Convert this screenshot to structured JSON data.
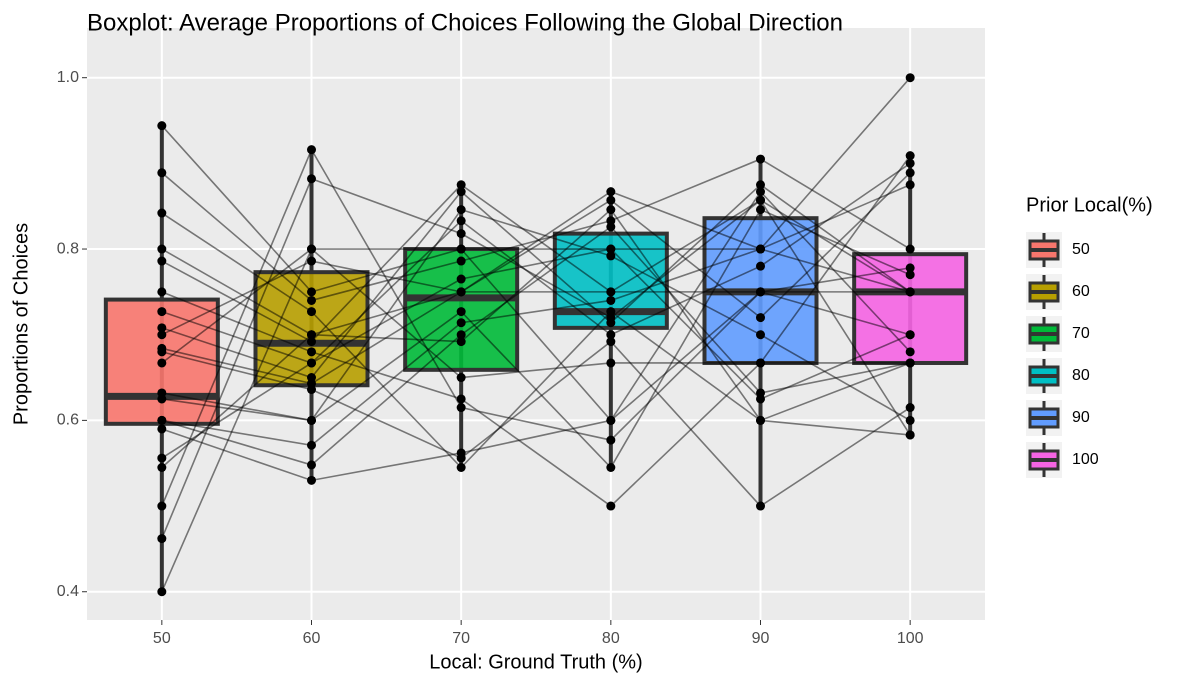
{
  "chart_data": {
    "type": "boxplot",
    "title": "Boxplot: Average Proportions of Choices Following the Global Direction",
    "x_label": "Local: Ground Truth (%)",
    "y_label": "Proportions of Choices",
    "legend_title": "Prior Local(%)",
    "categories": [
      "50",
      "60",
      "70",
      "80",
      "90",
      "100"
    ],
    "colors": [
      "#F8766D",
      "#B79F00",
      "#00BA38",
      "#00BFC4",
      "#619CFF",
      "#F564E3"
    ],
    "boxes": [
      {
        "low": 0.4,
        "q1": 0.596,
        "median": 0.628,
        "q3": 0.741,
        "high": 0.944
      },
      {
        "low": 0.53,
        "q1": 0.641,
        "median": 0.69,
        "q3": 0.773,
        "high": 0.916
      },
      {
        "low": 0.545,
        "q1": 0.659,
        "median": 0.743,
        "q3": 0.8,
        "high": 0.875
      },
      {
        "low": 0.545,
        "q1": 0.708,
        "median": 0.727,
        "q3": 0.818,
        "high": 0.867
      },
      {
        "low": 0.5,
        "q1": 0.667,
        "median": 0.75,
        "q3": 0.836,
        "high": 0.905
      },
      {
        "low": 0.583,
        "q1": 0.667,
        "median": 0.75,
        "q3": 0.794,
        "high": 0.909
      }
    ],
    "points": [
      [
        0.944,
        0.889,
        0.842,
        0.8,
        0.786,
        0.75,
        0.727,
        0.708,
        0.684,
        0.68,
        0.632,
        0.625,
        0.6,
        0.6,
        0.59,
        0.556,
        0.545,
        0.5,
        0.462,
        0.4,
        0.667,
        0.7
      ],
      [
        0.75,
        0.74,
        0.727,
        0.7,
        0.692,
        0.68,
        0.667,
        0.65,
        0.643,
        0.636,
        0.6,
        0.6,
        0.571,
        0.548,
        0.53,
        0.667,
        0.7,
        0.916,
        0.882,
        0.8,
        0.8,
        0.786
      ],
      [
        0.8,
        0.786,
        0.545,
        0.75,
        0.875,
        0.625,
        0.765,
        0.867,
        0.75,
        0.556,
        0.727,
        0.846,
        0.714,
        0.7,
        0.562,
        0.833,
        0.692,
        0.615,
        0.818,
        0.65,
        0.8,
        0.75
      ],
      [
        0.6,
        0.833,
        0.727,
        0.867,
        0.75,
        0.5,
        0.8,
        0.714,
        0.857,
        0.692,
        0.545,
        0.792,
        0.74,
        0.826,
        0.6,
        0.7,
        0.846,
        0.577,
        0.72,
        0.667,
        0.8,
        0.75
      ],
      [
        0.75,
        0.905,
        0.6,
        0.8,
        0.857,
        0.667,
        0.625,
        0.875,
        0.72,
        0.5,
        0.846,
        0.7,
        0.8,
        0.632,
        0.867,
        0.78,
        0.6,
        0.75,
        0.857,
        0.667,
        0.8,
        0.75
      ],
      [
        0.75,
        0.8,
        0.667,
        1.0,
        0.583,
        0.909,
        0.7,
        0.75,
        0.889,
        0.615,
        0.77,
        0.6,
        0.875,
        0.667,
        0.68,
        0.9,
        0.583,
        0.778,
        0.75,
        0.667,
        0.75,
        0.7
      ]
    ],
    "ylim": [
      0.367,
      1.058
    ],
    "yticks": [
      0.4,
      0.6,
      0.8,
      {
        "value": 1,
        "label": "1.0"
      }
    ],
    "grid": true
  }
}
